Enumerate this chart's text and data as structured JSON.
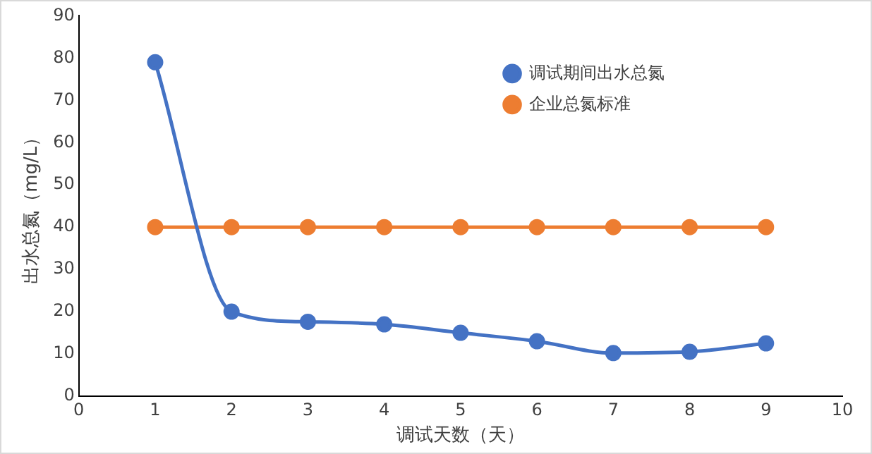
{
  "chart_data": {
    "type": "line",
    "xlabel": "调试天数（天）",
    "ylabel": "出水总氮（mg/L）",
    "x": [
      1,
      2,
      3,
      4,
      5,
      6,
      7,
      8,
      9
    ],
    "series": [
      {
        "name": "调试期间出水总氮",
        "color": "#4472c4",
        "values": [
          79,
          20,
          17.6,
          17,
          15,
          13,
          10.2,
          10.5,
          12.5
        ]
      },
      {
        "name": "企业总氮标准",
        "color": "#ed7d31",
        "values": [
          40,
          40,
          40,
          40,
          40,
          40,
          40,
          40,
          40
        ]
      }
    ],
    "xlim": [
      0,
      10
    ],
    "xticks": [
      0,
      1,
      2,
      3,
      4,
      5,
      6,
      7,
      8,
      9,
      10
    ],
    "ylim": [
      0,
      90
    ],
    "yticks": [
      0,
      10,
      20,
      30,
      40,
      50,
      60,
      70,
      80,
      90
    ],
    "grid": false,
    "legend": "top right",
    "marker": "circle",
    "line_style": "solid"
  }
}
